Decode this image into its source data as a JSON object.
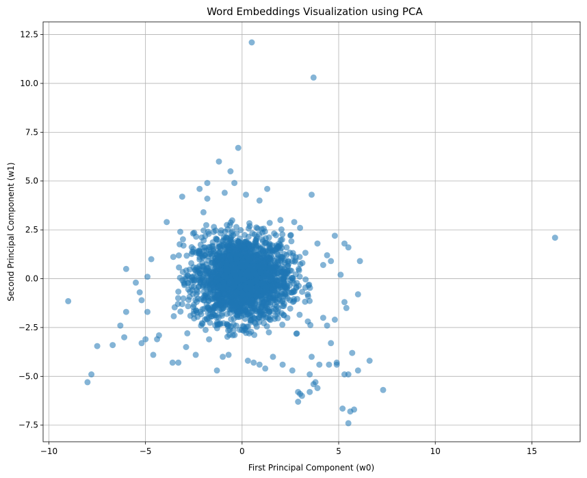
{
  "chart_data": {
    "type": "scatter",
    "title": "Word Embeddings Visualization using PCA",
    "xlabel": "First Principal Component (w0)",
    "ylabel": "Second Principal Component (w1)",
    "xlim": [
      -10.3,
      17.5
    ],
    "ylim": [
      -8.35,
      13.15
    ],
    "xticks": [
      -10,
      -5,
      0,
      5,
      10,
      15
    ],
    "yticks": [
      -7.5,
      -5.0,
      -2.5,
      0.0,
      2.5,
      5.0,
      7.5,
      10.0,
      12.5
    ],
    "xtick_labels": [
      "−10",
      "−5",
      "0",
      "5",
      "10",
      "15"
    ],
    "ytick_labels": [
      "−7.5",
      "−5.0",
      "−2.5",
      "0.0",
      "2.5",
      "5.0",
      "7.5",
      "10.0",
      "12.5"
    ],
    "grid": true,
    "marker_color": "#1f77b4",
    "marker_alpha": 0.55,
    "outliers": [
      [
        0.5,
        12.1
      ],
      [
        3.7,
        10.3
      ],
      [
        16.2,
        2.1
      ],
      [
        -9.0,
        -1.15
      ],
      [
        -0.2,
        6.7
      ],
      [
        -1.2,
        6.0
      ],
      [
        -0.6,
        5.5
      ],
      [
        -2.2,
        4.6
      ],
      [
        -1.8,
        4.9
      ],
      [
        -0.4,
        4.9
      ],
      [
        1.3,
        4.6
      ],
      [
        3.6,
        4.3
      ],
      [
        -3.1,
        4.2
      ],
      [
        -7.5,
        -3.45
      ],
      [
        -7.8,
        -4.9
      ],
      [
        -8.0,
        -5.3
      ],
      [
        -6.3,
        -2.4
      ],
      [
        -6.1,
        -3.0
      ],
      [
        -6.7,
        -3.4
      ],
      [
        -6.0,
        -1.7
      ],
      [
        -6.0,
        0.5
      ],
      [
        -5.5,
        -0.2
      ],
      [
        6.1,
        0.9
      ],
      [
        6.0,
        -0.8
      ],
      [
        7.3,
        -5.7
      ],
      [
        6.6,
        -4.2
      ],
      [
        6.0,
        -4.7
      ],
      [
        5.8,
        -6.7
      ],
      [
        5.5,
        -7.4
      ],
      [
        5.6,
        -6.8
      ],
      [
        5.2,
        -6.65
      ],
      [
        5.5,
        -4.9
      ],
      [
        5.3,
        -4.9
      ],
      [
        5.7,
        -3.8
      ],
      [
        5.4,
        -1.5
      ],
      [
        5.3,
        -1.2
      ],
      [
        5.1,
        0.2
      ],
      [
        5.3,
        1.8
      ],
      [
        5.5,
        1.6
      ],
      [
        4.8,
        2.2
      ],
      [
        4.4,
        1.2
      ],
      [
        3.5,
        -4.9
      ],
      [
        3.0,
        -5.9
      ],
      [
        2.9,
        -5.8
      ],
      [
        3.1,
        -6.0
      ],
      [
        2.9,
        -6.3
      ],
      [
        3.5,
        -5.8
      ],
      [
        3.9,
        -5.6
      ],
      [
        4.0,
        -4.4
      ],
      [
        4.5,
        -4.4
      ],
      [
        4.9,
        -4.3
      ],
      [
        4.9,
        -4.4
      ],
      [
        3.6,
        -4.0
      ],
      [
        3.8,
        -5.3
      ],
      [
        3.7,
        -5.4
      ],
      [
        -1.3,
        -4.7
      ],
      [
        -4.6,
        -3.9
      ],
      [
        -3.6,
        -4.3
      ],
      [
        -3.3,
        -4.3
      ],
      [
        -5.0,
        -3.1
      ],
      [
        -5.2,
        -3.3
      ],
      [
        -4.4,
        -3.1
      ],
      [
        -4.3,
        -2.9
      ],
      [
        -5.2,
        -1.1
      ],
      [
        -4.9,
        -1.7
      ],
      [
        -5.3,
        -0.7
      ],
      [
        -4.9,
        0.1
      ],
      [
        -4.7,
        1.0
      ],
      [
        -3.9,
        2.9
      ],
      [
        -3.2,
        2.4
      ],
      [
        -2.0,
        3.4
      ],
      [
        -1.8,
        4.1
      ],
      [
        -0.9,
        4.4
      ],
      [
        0.2,
        4.3
      ],
      [
        0.9,
        4.0
      ],
      [
        0.9,
        -4.4
      ],
      [
        1.2,
        -4.6
      ],
      [
        2.1,
        -4.4
      ],
      [
        2.6,
        -4.7
      ],
      [
        1.6,
        -4.0
      ],
      [
        -0.7,
        -3.9
      ],
      [
        -1.0,
        -4.0
      ],
      [
        0.6,
        -4.3
      ],
      [
        0.3,
        -4.2
      ],
      [
        -2.4,
        -3.9
      ],
      [
        -2.9,
        -3.5
      ],
      [
        4.2,
        -2.0
      ],
      [
        4.4,
        -2.4
      ],
      [
        4.6,
        -3.3
      ],
      [
        4.8,
        -2.1
      ],
      [
        3.9,
        1.8
      ],
      [
        4.2,
        0.7
      ],
      [
        4.6,
        0.9
      ],
      [
        3.0,
        2.6
      ],
      [
        2.7,
        2.9
      ]
    ],
    "cluster": {
      "count": 2200,
      "center": [
        0.0,
        0.0
      ],
      "std_x": 1.25,
      "std_y": 1.1,
      "clip": 2.85
    }
  }
}
